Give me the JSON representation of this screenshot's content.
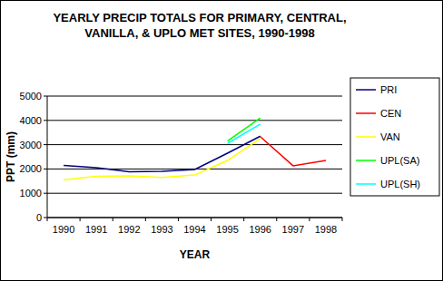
{
  "chart_data": {
    "type": "line",
    "title": "YEARLY PRECIP TOTALS FOR PRIMARY, CENTRAL, VANILLA, & UPLO MET SITES, 1990-1998",
    "x_label": "YEAR",
    "y_label": "PPT (mm)",
    "categories": [
      "1990",
      "1991",
      "1992",
      "1993",
      "1994",
      "1995",
      "1996",
      "1997",
      "1998"
    ],
    "series": [
      {
        "name": "PRI",
        "color": "#000080",
        "values": [
          2150,
          2050,
          1880,
          1900,
          1980,
          2650,
          3350,
          null,
          null
        ]
      },
      {
        "name": "CEN",
        "color": "#ff0000",
        "values": [
          null,
          null,
          null,
          null,
          null,
          null,
          3330,
          2130,
          2350
        ]
      },
      {
        "name": "VAN",
        "color": "#ffff00",
        "values": [
          1550,
          1700,
          1720,
          1650,
          1750,
          2350,
          3250,
          null,
          null
        ]
      },
      {
        "name": "UPL(SA)",
        "color": "#00ff00",
        "values": [
          null,
          null,
          null,
          null,
          null,
          3150,
          4100,
          null,
          null
        ]
      },
      {
        "name": "UPL(SH)",
        "color": "#00ffff",
        "values": [
          null,
          null,
          null,
          null,
          null,
          3050,
          3850,
          null,
          null
        ]
      }
    ],
    "ylim": [
      0,
      5000
    ],
    "yticks": [
      0,
      1000,
      2000,
      3000,
      4000,
      5000
    ],
    "grid": true,
    "legend": "right"
  }
}
